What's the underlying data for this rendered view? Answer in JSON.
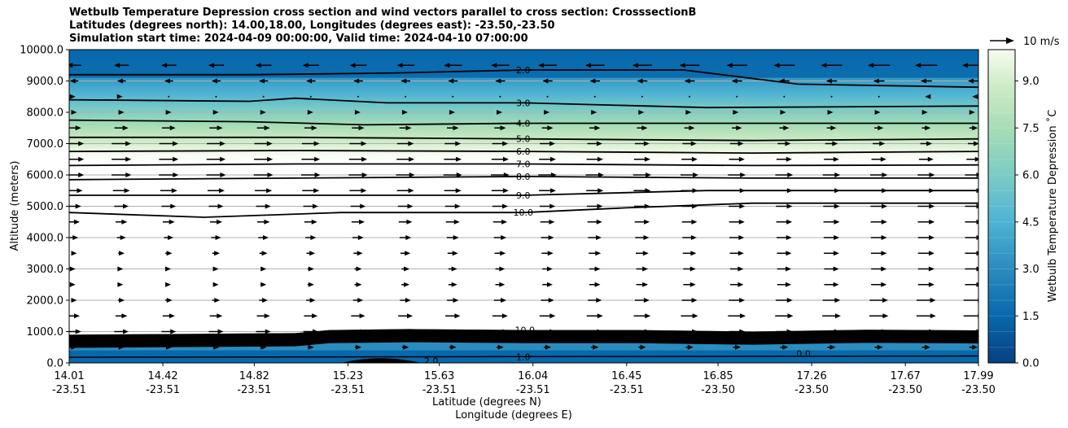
{
  "chart_data": {
    "type": "contour",
    "title_lines": [
      "Wetbulb Temperature Depression cross section and wind vectors parallel to cross section: CrosssectionB",
      "Latitudes (degrees north): 14.00,18.00, Longitudes (degrees east): -23.50,-23.50",
      "Simulation start time: 2024-04-09 00:00:00, Valid time: 2024-04-10 07:00:00"
    ],
    "ylabel": "Altitude (meters)",
    "xlabel_lat": "Latitude (degrees N)",
    "xlabel_lon": "Longitude (degrees E)",
    "ylim": [
      0,
      10000
    ],
    "y_ticks": [
      "0.0",
      "1000.0",
      "2000.0",
      "3000.0",
      "4000.0",
      "5000.0",
      "6000.0",
      "7000.0",
      "8000.0",
      "9000.0",
      "10000.0"
    ],
    "x_ticks": [
      {
        "lat": "14.01",
        "lon": "-23.51"
      },
      {
        "lat": "14.42",
        "lon": "-23.51"
      },
      {
        "lat": "14.82",
        "lon": "-23.51"
      },
      {
        "lat": "15.23",
        "lon": "-23.51"
      },
      {
        "lat": "15.63",
        "lon": "-23.51"
      },
      {
        "lat": "16.04",
        "lon": "-23.51"
      },
      {
        "lat": "16.45",
        "lon": "-23.51"
      },
      {
        "lat": "16.85",
        "lon": "-23.50"
      },
      {
        "lat": "17.26",
        "lon": "-23.50"
      },
      {
        "lat": "17.67",
        "lon": "-23.50"
      },
      {
        "lat": "17.99",
        "lon": "-23.50"
      }
    ],
    "colorbar": {
      "label": "Wetbulb Temperature Depression ˚C",
      "range": [
        0,
        10
      ],
      "ticks": [
        "0.0",
        "1.5",
        "3.0",
        "4.5",
        "6.0",
        "7.5",
        "9.0"
      ]
    },
    "quiver_key": "10 m/s",
    "contour_lines": [
      {
        "label": "1.0",
        "value": 1.0,
        "label_lat": 16.04,
        "label_alt": 200
      },
      {
        "label": "2.0",
        "value": 2.0,
        "label_lat": 16.04,
        "label_alt": 9350
      },
      {
        "label": "3.0",
        "value": 3.0,
        "label_lat": 16.04,
        "label_alt": 8300
      },
      {
        "label": "4.0",
        "value": 4.0,
        "label_lat": 16.04,
        "label_alt": 7650
      },
      {
        "label": "5.0",
        "value": 5.0,
        "label_lat": 16.04,
        "label_alt": 7150
      },
      {
        "label": "6.0",
        "value": 6.0,
        "label_lat": 16.04,
        "label_alt": 6750
      },
      {
        "label": "7.0",
        "value": 7.0,
        "label_lat": 16.04,
        "label_alt": 6350
      },
      {
        "label": "8.0",
        "value": 8.0,
        "label_lat": 16.04,
        "label_alt": 5950
      },
      {
        "label": "9.0",
        "value": 9.0,
        "label_lat": 16.04,
        "label_alt": 5350
      },
      {
        "label": "10.0",
        "value": 10.0,
        "label_lat": 16.04,
        "label_alt": 4800
      }
    ],
    "extra_labels": [
      "10.0",
      "2.0",
      "0.0",
      "0.0"
    ],
    "wind_rows_alt": [
      9500,
      9000,
      8500,
      8000,
      7500,
      7000,
      6500,
      6000,
      5500,
      5000,
      4500,
      4000,
      3500,
      3000,
      2500,
      2000,
      1500,
      1000,
      500
    ],
    "wind_row_speed_left": [
      -5,
      -3,
      1,
      2,
      5,
      7,
      7,
      7,
      6,
      5,
      4,
      3,
      2,
      1,
      1,
      2,
      4,
      5,
      2
    ],
    "wind_row_speed_right": [
      -8,
      -4,
      -1,
      1,
      3,
      4,
      5,
      6,
      6,
      6,
      6,
      6,
      6,
      6,
      6,
      7,
      7,
      6,
      3
    ]
  }
}
